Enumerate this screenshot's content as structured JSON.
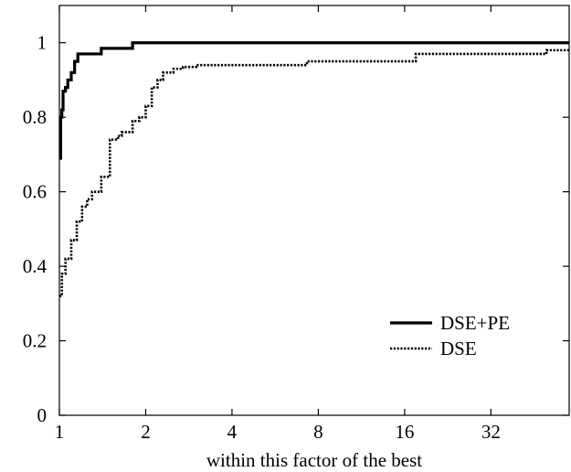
{
  "chart_data": {
    "type": "line",
    "title": "",
    "xlabel": "within this factor of the best",
    "ylabel": "",
    "x_scale": "log2",
    "xlim": [
      1,
      60
    ],
    "ylim": [
      0,
      1.1
    ],
    "x_ticks": [
      1,
      2,
      4,
      8,
      16,
      32
    ],
    "x_tick_labels": [
      "1",
      "2",
      "4",
      "8",
      "16",
      "32"
    ],
    "y_ticks": [
      0,
      0.2,
      0.4,
      0.6,
      0.8,
      1
    ],
    "y_tick_labels": [
      "0",
      "0.2",
      "0.4",
      "0.6",
      "0.8",
      "1"
    ],
    "grid": false,
    "legend_position": "bottom-right",
    "series": [
      {
        "name": "DSE+PE",
        "style": "solid",
        "color": "#000000",
        "x": [
          1.0,
          1.01,
          1.02,
          1.03,
          1.05,
          1.07,
          1.1,
          1.13,
          1.16,
          1.4,
          1.8,
          60
        ],
        "y": [
          0.69,
          0.8,
          0.82,
          0.87,
          0.88,
          0.9,
          0.92,
          0.95,
          0.97,
          0.985,
          1.0,
          1.0
        ]
      },
      {
        "name": "DSE",
        "style": "dotted",
        "color": "#000000",
        "x": [
          1.0,
          1.02,
          1.05,
          1.1,
          1.15,
          1.2,
          1.25,
          1.3,
          1.4,
          1.5,
          1.6,
          1.65,
          1.8,
          1.9,
          2.0,
          2.1,
          2.2,
          2.3,
          2.5,
          2.7,
          3.0,
          4.0,
          7.3,
          17.5,
          50,
          60
        ],
        "y": [
          0.32,
          0.38,
          0.42,
          0.47,
          0.52,
          0.56,
          0.58,
          0.6,
          0.64,
          0.74,
          0.75,
          0.76,
          0.79,
          0.8,
          0.83,
          0.88,
          0.9,
          0.92,
          0.93,
          0.935,
          0.94,
          0.94,
          0.95,
          0.97,
          0.98,
          0.98
        ]
      }
    ]
  }
}
